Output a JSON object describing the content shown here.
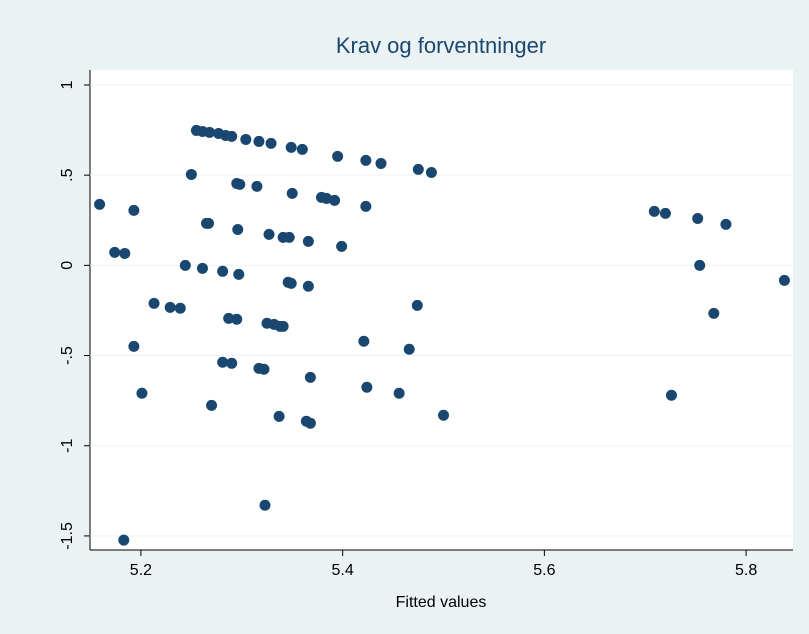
{
  "chart_data": {
    "type": "scatter",
    "title": "Krav og forventninger",
    "x_label": "Fitted values",
    "color": "#1a476f",
    "grid": true,
    "xlim": [
      5.1495,
      5.8465
    ],
    "ylim": [
      -1.578,
      1.083
    ],
    "xticks": [
      5.2,
      5.4,
      5.6,
      5.8
    ],
    "yticks": [
      1,
      {
        "value": 0.5,
        "label": ".5"
      },
      0,
      {
        "value": -0.5,
        "label": "-.5"
      },
      -1,
      -1.5
    ],
    "x": [
      5.159,
      5.193,
      5.174,
      5.184,
      5.193,
      5.201,
      5.183,
      5.213,
      5.229,
      5.239,
      5.244,
      5.25,
      5.255,
      5.261,
      5.268,
      5.277,
      5.284,
      5.29,
      5.304,
      5.317,
      5.329,
      5.349,
      5.36,
      5.395,
      5.423,
      5.438,
      5.475,
      5.488,
      5.265,
      5.267,
      5.295,
      5.298,
      5.315,
      5.35,
      5.379,
      5.384,
      5.392,
      5.423,
      5.296,
      5.327,
      5.341,
      5.347,
      5.366,
      5.399,
      5.261,
      5.281,
      5.297,
      5.346,
      5.349,
      5.366,
      5.287,
      5.295,
      5.325,
      5.332,
      5.338,
      5.341,
      5.474,
      5.421,
      5.466,
      5.281,
      5.29,
      5.317,
      5.322,
      5.368,
      5.424,
      5.456,
      5.27,
      5.337,
      5.364,
      5.368,
      5.5,
      5.323,
      5.709,
      5.72,
      5.752,
      5.78,
      5.754,
      5.768,
      5.726,
      5.838
    ],
    "y": [
      0.338,
      0.305,
      0.072,
      0.066,
      -0.449,
      -0.709,
      -1.523,
      -0.211,
      -0.233,
      -0.238,
      0.0,
      0.504,
      0.748,
      0.742,
      0.737,
      0.731,
      0.72,
      0.715,
      0.698,
      0.687,
      0.676,
      0.654,
      0.643,
      0.604,
      0.582,
      0.565,
      0.532,
      0.515,
      0.233,
      0.233,
      0.454,
      0.449,
      0.438,
      0.399,
      0.377,
      0.371,
      0.36,
      0.327,
      0.199,
      0.172,
      0.155,
      0.155,
      0.133,
      0.105,
      -0.017,
      -0.033,
      -0.05,
      -0.094,
      -0.1,
      -0.116,
      -0.294,
      -0.299,
      -0.321,
      -0.327,
      -0.338,
      -0.338,
      -0.222,
      -0.421,
      -0.465,
      -0.537,
      -0.543,
      -0.571,
      -0.576,
      -0.621,
      -0.676,
      -0.709,
      -0.776,
      -0.837,
      -0.864,
      -0.875,
      -0.831,
      -1.33,
      0.299,
      0.288,
      0.26,
      0.227,
      0.0,
      -0.266,
      -0.72,
      -0.083
    ]
  }
}
